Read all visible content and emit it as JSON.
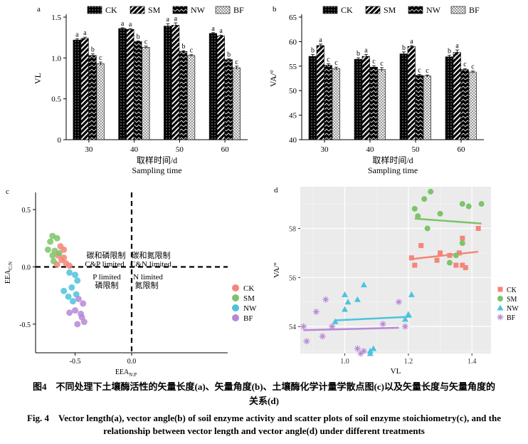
{
  "figure": {
    "caption_zh_line1": "图4　不同处理下土壤酶活性的矢量长度(a)、矢量角度(b)、土壤酶化学计量学散点图(c)以及矢量长度与矢量角度的",
    "caption_zh_line2": "关系(d)",
    "caption_en_line1": "Fig. 4　Vector length(a), vector angle(b) of soil enzyme activity and scatter plots of soil enzyme stoichiometry(c), and the",
    "caption_en_line2": "relationship between vector length and vector angle(d) under different treatments"
  },
  "colors": {
    "CK": "#f4857a",
    "SM": "#7cc46a",
    "NW": "#4cc3dd",
    "BF": "#b788d6",
    "bar": "#000000"
  },
  "chart_data": [
    {
      "panel": "a",
      "type": "bar",
      "categories": [
        "30",
        "40",
        "50",
        "60"
      ],
      "xlabel_zh": "取样时间/d",
      "xlabel_en": "Sampling time",
      "ylabel": "VL",
      "ylim": [
        0,
        1.5
      ],
      "yticks": [
        "0",
        "0.5",
        "1.0",
        "1.5"
      ],
      "legend": [
        "CK",
        "SM",
        "NW",
        "BF"
      ],
      "series": [
        {
          "name": "CK",
          "values": [
            1.22,
            1.36,
            1.39,
            1.3
          ],
          "err": [
            0.015,
            0.01,
            0.03,
            0.01
          ],
          "letters": [
            "a",
            "a",
            "a",
            "a"
          ]
        },
        {
          "name": "SM",
          "values": [
            1.24,
            1.35,
            1.4,
            1.27
          ],
          "err": [
            0.015,
            0.01,
            0.03,
            0.01
          ],
          "letters": [
            "a",
            "a",
            "a",
            "a"
          ]
        },
        {
          "name": "NW",
          "values": [
            1.03,
            1.2,
            1.08,
            0.98
          ],
          "err": [
            0.02,
            0.01,
            0.01,
            0.01
          ],
          "letters": [
            "b",
            "b",
            "b",
            "b"
          ]
        },
        {
          "name": "BF",
          "values": [
            0.93,
            1.13,
            1.03,
            0.88
          ],
          "err": [
            0.02,
            0.015,
            0.01,
            0.02
          ],
          "letters": [
            "c",
            "c",
            "c",
            "c"
          ]
        }
      ]
    },
    {
      "panel": "b",
      "type": "bar",
      "categories": [
        "30",
        "40",
        "50",
        "60"
      ],
      "xlabel_zh": "取样时间/d",
      "xlabel_en": "Sampling time",
      "ylabel": "VA/°",
      "ylim": [
        40,
        65
      ],
      "yticks": [
        "40",
        "45",
        "50",
        "55",
        "60",
        "65"
      ],
      "legend": [
        "CK",
        "SM",
        "NW",
        "BF"
      ],
      "series": [
        {
          "name": "CK",
          "values": [
            57.0,
            56.4,
            57.5,
            56.9
          ],
          "err": [
            0.4,
            0.3,
            0.4,
            0.3
          ],
          "letters": [
            "b",
            "b",
            "b",
            "b"
          ]
        },
        {
          "name": "SM",
          "values": [
            59.2,
            57.0,
            59.0,
            57.8
          ],
          "err": [
            0.3,
            0.4,
            0.2,
            0.5
          ],
          "letters": [
            "a",
            "a",
            "a",
            "a"
          ]
        },
        {
          "name": "NW",
          "values": [
            55.2,
            54.8,
            53.1,
            54.3
          ],
          "err": [
            0.3,
            0.3,
            0.2,
            0.2
          ],
          "letters": [
            "c",
            "c",
            "c",
            "c"
          ]
        },
        {
          "name": "BF",
          "values": [
            54.5,
            54.3,
            53.0,
            53.8
          ],
          "err": [
            0.3,
            0.4,
            0.2,
            0.2
          ],
          "letters": [
            "c",
            "c",
            "c",
            "c"
          ]
        }
      ]
    },
    {
      "panel": "c",
      "type": "scatter",
      "xlabel": "EEA",
      "xlabel_sub": "N:P",
      "ylabel": "EEA",
      "ylabel_sub": "C:N",
      "xlim": [
        -0.85,
        0.85
      ],
      "ylim": [
        -0.75,
        0.65
      ],
      "xticks": [
        -0.5,
        0.0
      ],
      "yticks": [
        0.5,
        0.0,
        -0.5
      ],
      "quadrant_labels": {
        "top_left_zh": "碳和磷限制",
        "top_left_en": "C&P limited",
        "top_right_zh": "碳和氮限制",
        "top_right_en": "C&N limited",
        "bottom_left_en": "P limited",
        "bottom_left_zh": "磷限制",
        "bottom_right_en": "N limited",
        "bottom_right_zh": "氮限制"
      },
      "legend": [
        "CK",
        "SM",
        "NW",
        "BF"
      ],
      "series": [
        {
          "name": "CK",
          "points": [
            [
              -0.63,
              0.18
            ],
            [
              -0.6,
              0.15
            ],
            [
              -0.65,
              0.1
            ],
            [
              -0.62,
              0.06
            ],
            [
              -0.58,
              0.03
            ],
            [
              -0.66,
              0.02
            ],
            [
              -0.6,
              0.08
            ],
            [
              -0.55,
              0.01
            ]
          ]
        },
        {
          "name": "SM",
          "points": [
            [
              -0.7,
              0.27
            ],
            [
              -0.72,
              0.22
            ],
            [
              -0.66,
              0.25
            ],
            [
              -0.64,
              0.12
            ],
            [
              -0.68,
              0.14
            ],
            [
              -0.7,
              0.1
            ],
            [
              -0.74,
              0.15
            ],
            [
              -0.69,
              0.05
            ]
          ]
        },
        {
          "name": "NW",
          "points": [
            [
              -0.55,
              -0.05
            ],
            [
              -0.5,
              -0.07
            ],
            [
              -0.48,
              -0.12
            ],
            [
              -0.53,
              -0.18
            ],
            [
              -0.6,
              -0.21
            ],
            [
              -0.49,
              -0.24
            ],
            [
              -0.56,
              -0.26
            ],
            [
              -0.52,
              -0.3
            ]
          ]
        },
        {
          "name": "BF",
          "points": [
            [
              -0.47,
              -0.28
            ],
            [
              -0.43,
              -0.32
            ],
            [
              -0.5,
              -0.38
            ],
            [
              -0.45,
              -0.41
            ],
            [
              -0.55,
              -0.4
            ],
            [
              -0.42,
              -0.48
            ],
            [
              -0.48,
              -0.5
            ],
            [
              -0.44,
              -0.44
            ]
          ]
        }
      ]
    },
    {
      "panel": "d",
      "type": "scatter",
      "xlabel": "VL",
      "ylabel": "VA/°",
      "xlim": [
        0.86,
        1.46
      ],
      "ylim": [
        52.9,
        59.7
      ],
      "xticks": [
        1.0,
        1.2,
        1.4
      ],
      "xtick_labels": [
        "1.0",
        "1.2",
        "1.4"
      ],
      "yticks": [
        54,
        56,
        58
      ],
      "legend": [
        "CK",
        "SM",
        "NW",
        "BF"
      ],
      "series": [
        {
          "name": "CK",
          "points": [
            [
              1.21,
              56.8
            ],
            [
              1.22,
              56.5
            ],
            [
              1.24,
              57.3
            ],
            [
              1.29,
              56.7
            ],
            [
              1.3,
              57.0
            ],
            [
              1.33,
              56.9
            ],
            [
              1.35,
              56.5
            ],
            [
              1.37,
              56.5
            ],
            [
              1.38,
              56.4
            ],
            [
              1.37,
              57.6
            ],
            [
              1.42,
              58.0
            ],
            [
              1.36,
              57.0
            ]
          ],
          "fit": [
            [
              1.21,
              56.75
            ],
            [
              1.42,
              57.05
            ]
          ]
        },
        {
          "name": "SM",
          "points": [
            [
              1.22,
              58.8
            ],
            [
              1.25,
              59.2
            ],
            [
              1.27,
              59.5
            ],
            [
              1.23,
              58.5
            ],
            [
              1.3,
              58.6
            ],
            [
              1.26,
              58.0
            ],
            [
              1.33,
              56.6
            ],
            [
              1.35,
              56.9
            ],
            [
              1.37,
              57.4
            ],
            [
              1.37,
              59.0
            ],
            [
              1.39,
              58.9
            ],
            [
              1.43,
              59.0
            ]
          ],
          "fit": [
            [
              1.22,
              58.4
            ],
            [
              1.43,
              58.2
            ]
          ]
        },
        {
          "name": "NW",
          "points": [
            [
              0.97,
              54.2
            ],
            [
              1.0,
              54.7
            ],
            [
              1.01,
              55.0
            ],
            [
              1.04,
              55.1
            ],
            [
              1.06,
              55.7
            ],
            [
              1.0,
              55.3
            ],
            [
              1.08,
              52.9
            ],
            [
              1.09,
              53.1
            ],
            [
              1.08,
              53.0
            ],
            [
              1.19,
              54.3
            ],
            [
              1.2,
              54.5
            ],
            [
              1.21,
              55.3
            ]
          ],
          "fit": [
            [
              0.97,
              54.25
            ],
            [
              1.21,
              54.4
            ]
          ]
        },
        {
          "name": "BF",
          "points": [
            [
              0.87,
              54.0
            ],
            [
              0.88,
              53.4
            ],
            [
              0.91,
              54.6
            ],
            [
              0.93,
              53.6
            ],
            [
              0.94,
              55.1
            ],
            [
              0.96,
              54.0
            ],
            [
              1.04,
              53.1
            ],
            [
              1.05,
              52.9
            ],
            [
              1.06,
              53.0
            ],
            [
              1.12,
              54.1
            ],
            [
              1.17,
              55.0
            ],
            [
              1.19,
              54.0
            ]
          ],
          "fit": [
            [
              0.87,
              53.85
            ],
            [
              1.17,
              53.95
            ]
          ]
        }
      ]
    }
  ]
}
